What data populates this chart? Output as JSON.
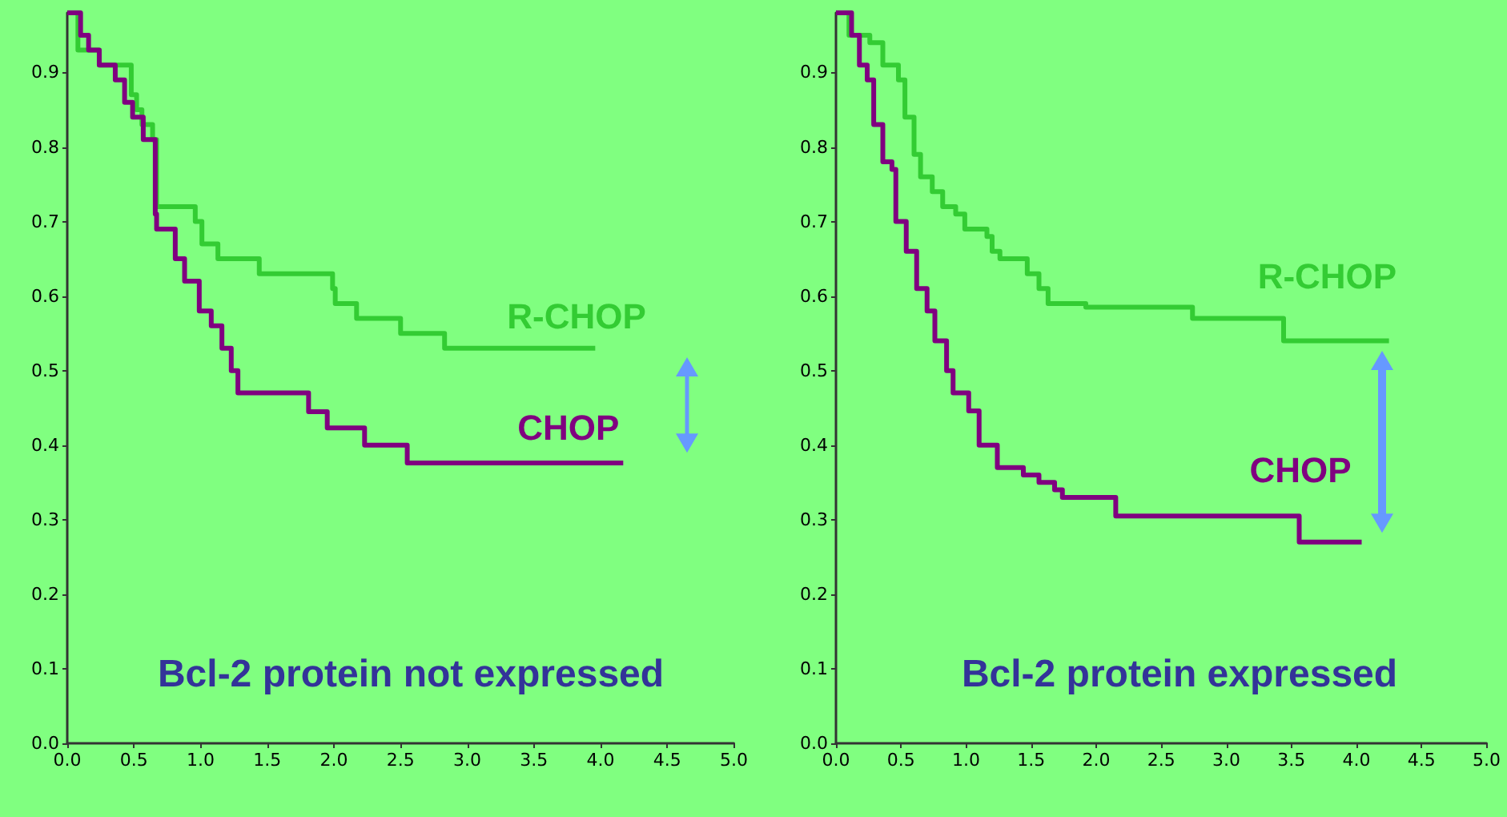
{
  "chart_data": [
    {
      "type": "step",
      "title": "Bcl-2 protein not expressed",
      "xlim": [
        0,
        5
      ],
      "ylim": [
        0,
        0.98
      ],
      "xticks": [
        {
          "value": 0,
          "label": "0.0"
        },
        {
          "value": 0.5,
          "label": "0.5"
        },
        {
          "value": 1,
          "label": "1.0"
        },
        {
          "value": 1.5,
          "label": "1.5"
        },
        {
          "value": 2,
          "label": "2.0"
        },
        {
          "value": 2.5,
          "label": "2.5"
        },
        {
          "value": 3,
          "label": "3.0"
        },
        {
          "value": 3.5,
          "label": "3.5"
        },
        {
          "value": 4,
          "label": "4.0"
        },
        {
          "value": 4.5,
          "label": "4.5"
        },
        {
          "value": 5,
          "label": "5.0"
        }
      ],
      "yticks": [
        {
          "value": 0,
          "label": "0.0"
        },
        {
          "value": 0.1,
          "label": "0.1"
        },
        {
          "value": 0.2,
          "label": "0.2"
        },
        {
          "value": 0.3,
          "label": "0.3"
        },
        {
          "value": 0.4,
          "label": "0.4"
        },
        {
          "value": 0.5,
          "label": "0.5"
        },
        {
          "value": 0.6,
          "label": "0.6"
        },
        {
          "value": 0.7,
          "label": "0.7"
        },
        {
          "value": 0.8,
          "label": "0.8"
        },
        {
          "value": 0.9,
          "label": "0.9"
        }
      ],
      "series": [
        {
          "name": "R-CHOP",
          "color": "#33cc33",
          "x": [
            0,
            0.08,
            0.24,
            0.48,
            0.52,
            0.56,
            0.64,
            0.67,
            0.96,
            1.01,
            1.13,
            1.44,
            1.99,
            2.01,
            2.17,
            2.5,
            2.83,
            3.96
          ],
          "values": [
            0.98,
            0.93,
            0.91,
            0.87,
            0.85,
            0.83,
            0.81,
            0.72,
            0.7,
            0.67,
            0.65,
            0.63,
            0.61,
            0.59,
            0.57,
            0.55,
            0.53,
            0.53
          ]
        },
        {
          "name": "CHOP",
          "color": "#800080",
          "x": [
            0,
            0.1,
            0.16,
            0.24,
            0.36,
            0.43,
            0.49,
            0.57,
            0.66,
            0.67,
            0.81,
            0.88,
            0.99,
            1.08,
            1.16,
            1.23,
            1.28,
            1.81,
            1.95,
            2.23,
            2.55,
            4.17
          ],
          "values": [
            0.98,
            0.95,
            0.93,
            0.91,
            0.89,
            0.86,
            0.84,
            0.81,
            0.71,
            0.69,
            0.65,
            0.62,
            0.58,
            0.56,
            0.53,
            0.5,
            0.47,
            0.445,
            0.423,
            0.4,
            0.376,
            0.376
          ]
        }
      ]
    },
    {
      "type": "step",
      "title": "Bcl-2 protein expressed",
      "xlim": [
        0,
        5
      ],
      "ylim": [
        0,
        0.98
      ],
      "xticks": [
        {
          "value": 0,
          "label": "0.0"
        },
        {
          "value": 0.5,
          "label": "0.5"
        },
        {
          "value": 1,
          "label": "1.0"
        },
        {
          "value": 1.5,
          "label": "1.5"
        },
        {
          "value": 2,
          "label": "2.0"
        },
        {
          "value": 2.5,
          "label": "2.5"
        },
        {
          "value": 3,
          "label": "3.0"
        },
        {
          "value": 3.5,
          "label": "3.5"
        },
        {
          "value": 4,
          "label": "4.0"
        },
        {
          "value": 4.5,
          "label": "4.5"
        },
        {
          "value": 5,
          "label": "5.0"
        }
      ],
      "yticks": [
        {
          "value": 0,
          "label": "0.0"
        },
        {
          "value": 0.1,
          "label": "0.1"
        },
        {
          "value": 0.2,
          "label": "0.2"
        },
        {
          "value": 0.3,
          "label": "0.3"
        },
        {
          "value": 0.4,
          "label": "0.4"
        },
        {
          "value": 0.5,
          "label": "0.5"
        },
        {
          "value": 0.6,
          "label": "0.6"
        },
        {
          "value": 0.7,
          "label": "0.7"
        },
        {
          "value": 0.8,
          "label": "0.8"
        },
        {
          "value": 0.9,
          "label": "0.9"
        }
      ],
      "series": [
        {
          "name": "R-CHOP",
          "color": "#33cc33",
          "x": [
            0,
            0.1,
            0.26,
            0.36,
            0.48,
            0.53,
            0.6,
            0.65,
            0.74,
            0.82,
            0.92,
            0.99,
            1.16,
            1.2,
            1.26,
            1.47,
            1.56,
            1.63,
            1.92,
            2.74,
            3.44,
            4.25
          ],
          "values": [
            0.98,
            0.95,
            0.94,
            0.91,
            0.89,
            0.84,
            0.79,
            0.76,
            0.74,
            0.72,
            0.71,
            0.69,
            0.68,
            0.66,
            0.65,
            0.63,
            0.61,
            0.59,
            0.585,
            0.57,
            0.54,
            0.54
          ]
        },
        {
          "name": "CHOP",
          "color": "#800080",
          "x": [
            0,
            0.12,
            0.18,
            0.24,
            0.29,
            0.36,
            0.43,
            0.46,
            0.54,
            0.62,
            0.7,
            0.76,
            0.85,
            0.9,
            1.02,
            1.1,
            1.24,
            1.44,
            1.56,
            1.68,
            1.74,
            2.15,
            3.56,
            4.04
          ],
          "values": [
            0.98,
            0.95,
            0.91,
            0.89,
            0.83,
            0.78,
            0.77,
            0.7,
            0.66,
            0.61,
            0.58,
            0.54,
            0.5,
            0.47,
            0.446,
            0.4,
            0.37,
            0.36,
            0.35,
            0.34,
            0.33,
            0.305,
            0.27,
            0.27
          ]
        }
      ]
    }
  ]
}
